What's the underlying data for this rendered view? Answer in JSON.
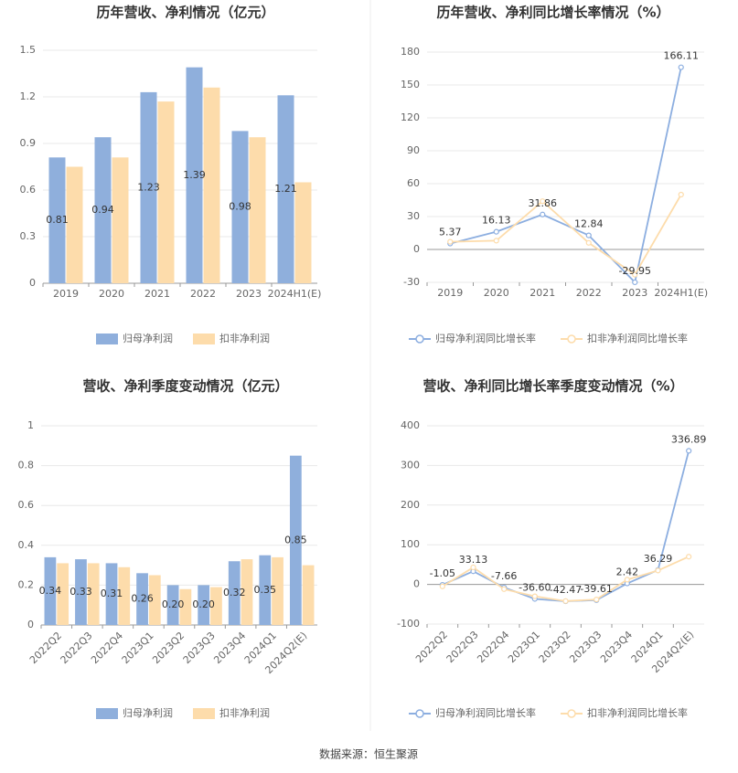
{
  "chart_data": [
    {
      "type": "bar",
      "title": "历年营收、净利情况（亿元）",
      "categories": [
        "2019",
        "2020",
        "2021",
        "2022",
        "2023",
        "2024H1(E)"
      ],
      "series": [
        {
          "name": "归母净利润",
          "color": "#8fafdc",
          "values": [
            0.81,
            0.94,
            1.23,
            1.39,
            0.98,
            1.21
          ],
          "show_labels": true
        },
        {
          "name": "扣非净利润",
          "color": "#fddcab",
          "values": [
            0.75,
            0.81,
            1.17,
            1.26,
            0.94,
            0.65
          ]
        }
      ],
      "ylim": [
        0,
        1.5
      ],
      "yticks": [
        0,
        0.3,
        0.6,
        0.9,
        1.2,
        1.5
      ],
      "grid": true
    },
    {
      "type": "line",
      "title": "历年营收、净利同比增长率情况（%）",
      "categories": [
        "2019",
        "2020",
        "2021",
        "2022",
        "2023",
        "2024H1(E)"
      ],
      "series": [
        {
          "name": "归母净利润同比增长率",
          "color": "#8caee0",
          "values": [
            5.37,
            16.13,
            31.86,
            12.84,
            -29.95,
            166.11
          ],
          "show_labels": true
        },
        {
          "name": "扣非净利润同比增长率",
          "color": "#fddcab",
          "values": [
            7,
            8,
            44,
            6,
            -23,
            50
          ]
        }
      ],
      "ylim": [
        -30,
        180
      ],
      "yticks": [
        -30,
        0,
        30,
        60,
        90,
        120,
        150,
        180
      ],
      "grid": true
    },
    {
      "type": "bar",
      "title": "营收、净利季度变动情况（亿元）",
      "categories": [
        "2022Q2",
        "2022Q3",
        "2022Q4",
        "2023Q1",
        "2023Q2",
        "2023Q3",
        "2023Q4",
        "2024Q1",
        "2024Q2(E)"
      ],
      "series": [
        {
          "name": "归母净利润",
          "color": "#8fafdc",
          "values": [
            0.34,
            0.33,
            0.31,
            0.26,
            0.2,
            0.2,
            0.32,
            0.35,
            0.85
          ],
          "value_labels": [
            "0.34",
            "0.33",
            "0.31",
            "0.26",
            "0.20",
            "0.20",
            "0.32",
            "0.35",
            "0.85"
          ],
          "show_labels": true
        },
        {
          "name": "扣非净利润",
          "color": "#fddcab",
          "values": [
            0.31,
            0.31,
            0.29,
            0.25,
            0.18,
            0.19,
            0.33,
            0.34,
            0.3
          ]
        }
      ],
      "ylim": [
        0,
        1
      ],
      "yticks": [
        0,
        0.2,
        0.4,
        0.6,
        0.8,
        1
      ],
      "grid": true
    },
    {
      "type": "line",
      "title": "营收、净利同比增长率季度变动情况（%）",
      "categories": [
        "2022Q2",
        "2022Q3",
        "2022Q4",
        "2023Q1",
        "2023Q2",
        "2023Q3",
        "2023Q4",
        "2024Q1",
        "2024Q2(E)"
      ],
      "series": [
        {
          "name": "归母净利润同比增长率",
          "color": "#8caee0",
          "values": [
            -1.05,
            33.13,
            -7.66,
            -36.6,
            -42.47,
            -39.61,
            2.42,
            36.29,
            336.89
          ],
          "value_labels": [
            "-1.05",
            "33.13",
            "-7.66",
            "-36.60",
            "-42.47",
            "-39.61",
            "2.42",
            "36.29",
            "336.89"
          ],
          "show_labels": true
        },
        {
          "name": "扣非净利润同比增长率",
          "color": "#fddcab",
          "values": [
            -5,
            43,
            -12,
            -30,
            -42,
            -38,
            12,
            35,
            70
          ]
        }
      ],
      "ylim": [
        -100,
        400
      ],
      "yticks": [
        -100,
        0,
        100,
        200,
        300,
        400
      ],
      "grid": true
    }
  ],
  "source": "数据来源：恒生聚源"
}
